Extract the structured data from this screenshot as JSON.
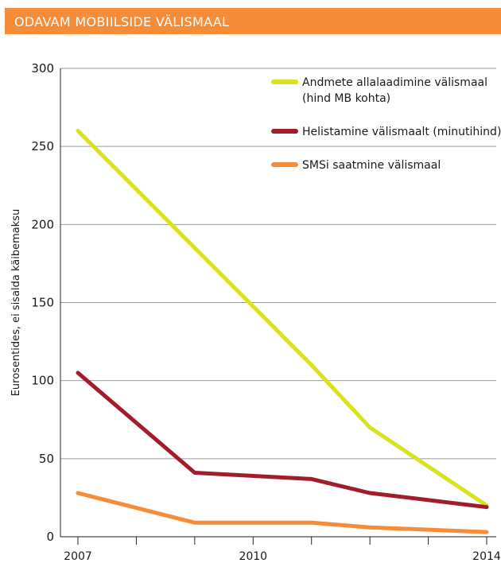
{
  "title": "ODAVAM MOBIILSIDE VÄLISMAAL",
  "colors": {
    "header": "#f68b38",
    "grid": "#9a9a9a",
    "axis": "#222222"
  },
  "chart_data": {
    "type": "line",
    "title": "",
    "xlabel": "",
    "ylabel": "Eurosentides, ei sisalda käibemaksu",
    "x": [
      2007,
      2008,
      2009,
      2010,
      2011,
      2012,
      2013,
      2014
    ],
    "x_tick_labels": [
      "2007",
      "",
      "",
      "2010",
      "",
      "",
      "",
      "2014"
    ],
    "ylim": [
      0,
      300
    ],
    "y_ticks": [
      0,
      50,
      100,
      150,
      200,
      250,
      300
    ],
    "grid": true,
    "legend_position": "top-right",
    "series": [
      {
        "name_lines": [
          "Andmete allalaadimine välismaal",
          "(hind MB kohta)"
        ],
        "color": "#d9e21c",
        "points": [
          [
            2007,
            260
          ],
          [
            2009,
            185
          ],
          [
            2011,
            110
          ],
          [
            2012,
            70
          ],
          [
            2014,
            20
          ]
        ]
      },
      {
        "name_lines": [
          "Helistamine välismaalt (minutihind)"
        ],
        "color": "#a31c2b",
        "points": [
          [
            2007,
            105
          ],
          [
            2009,
            41
          ],
          [
            2011,
            37
          ],
          [
            2012,
            28
          ],
          [
            2014,
            19
          ]
        ]
      },
      {
        "name_lines": [
          "SMSi saatmine välismaal"
        ],
        "color": "#f68b38",
        "points": [
          [
            2007,
            28
          ],
          [
            2009,
            9
          ],
          [
            2011,
            9
          ],
          [
            2012,
            6
          ],
          [
            2014,
            3
          ]
        ]
      }
    ]
  }
}
